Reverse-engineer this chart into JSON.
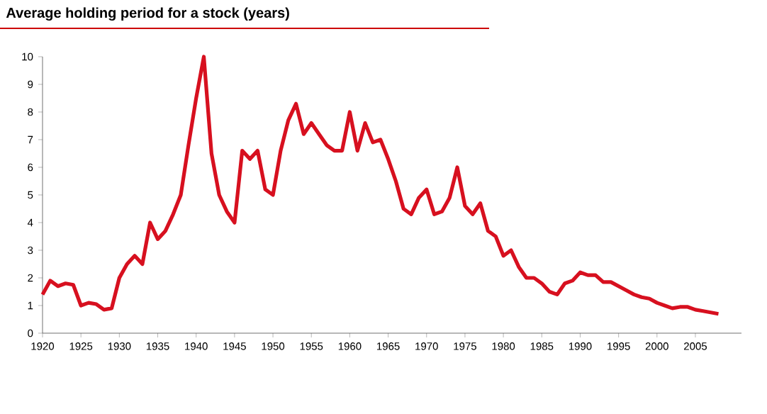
{
  "chart_data": {
    "type": "line",
    "title": "Average holding period for a stock (years)",
    "color": "#d7101f",
    "grid": false,
    "marker": "none",
    "line_style": "solid",
    "x": [
      1920,
      1921,
      1922,
      1923,
      1924,
      1925,
      1926,
      1927,
      1928,
      1929,
      1930,
      1931,
      1932,
      1933,
      1934,
      1935,
      1936,
      1937,
      1938,
      1939,
      1940,
      1941,
      1942,
      1943,
      1944,
      1945,
      1946,
      1947,
      1948,
      1949,
      1950,
      1951,
      1952,
      1953,
      1954,
      1955,
      1956,
      1957,
      1958,
      1959,
      1960,
      1961,
      1962,
      1963,
      1964,
      1965,
      1966,
      1967,
      1968,
      1969,
      1970,
      1971,
      1972,
      1973,
      1974,
      1975,
      1976,
      1977,
      1978,
      1979,
      1980,
      1981,
      1982,
      1983,
      1984,
      1985,
      1986,
      1987,
      1988,
      1989,
      1990,
      1991,
      1992,
      1993,
      1994,
      1995,
      1996,
      1997,
      1998,
      1999,
      2000,
      2001,
      2002,
      2003,
      2004,
      2005,
      2006,
      2007,
      2008
    ],
    "values": [
      1.4,
      1.9,
      1.7,
      1.8,
      1.75,
      1.0,
      1.1,
      1.05,
      0.85,
      0.9,
      2.0,
      2.5,
      2.8,
      2.5,
      4.0,
      3.4,
      3.7,
      4.3,
      5.0,
      6.8,
      8.5,
      10.0,
      6.5,
      5.0,
      4.4,
      4.0,
      6.6,
      6.3,
      6.6,
      5.2,
      5.0,
      6.6,
      7.7,
      8.3,
      7.2,
      7.6,
      7.2,
      6.8,
      6.6,
      6.6,
      8.0,
      6.6,
      7.6,
      6.9,
      7.0,
      6.3,
      5.5,
      4.5,
      4.3,
      4.9,
      5.2,
      4.3,
      4.4,
      4.9,
      6.0,
      4.6,
      4.3,
      4.7,
      3.7,
      3.5,
      2.8,
      3.0,
      2.4,
      2.0,
      2.0,
      1.8,
      1.5,
      1.4,
      1.8,
      1.9,
      2.2,
      2.1,
      2.1,
      1.85,
      1.85,
      1.7,
      1.55,
      1.4,
      1.3,
      1.25,
      1.1,
      1.0,
      0.9,
      0.95,
      0.95,
      0.85,
      0.8,
      0.75,
      0.7
    ],
    "xlim": [
      1920,
      2011
    ],
    "ylim": [
      0,
      10
    ],
    "xticks": [
      1920,
      1925,
      1930,
      1935,
      1940,
      1945,
      1950,
      1955,
      1960,
      1965,
      1970,
      1975,
      1980,
      1985,
      1990,
      1995,
      2000,
      2005
    ],
    "yticks": [
      0,
      1,
      2,
      3,
      4,
      5,
      6,
      7,
      8,
      9,
      10
    ]
  }
}
